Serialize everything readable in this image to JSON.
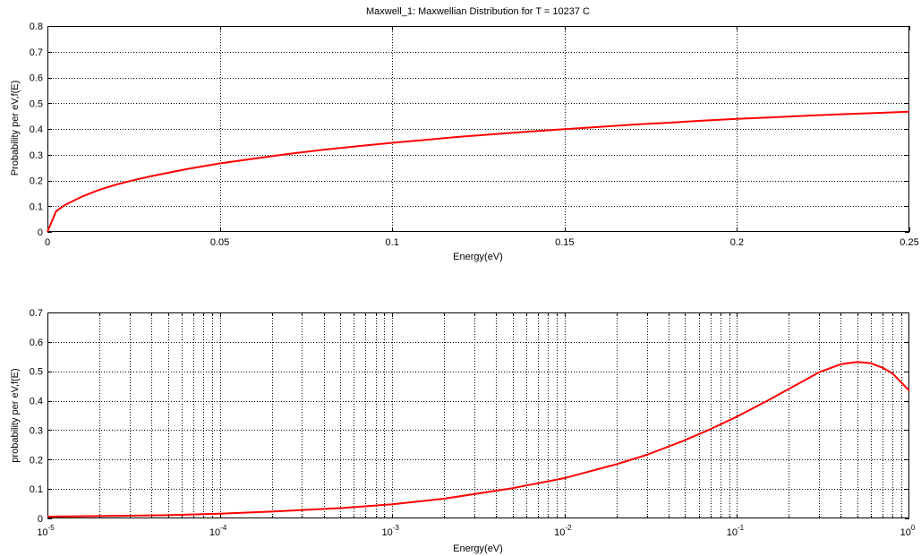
{
  "figure": {
    "title": "Maxwell_1: Maxwellian Distribution for T = 10237 C"
  },
  "colors": {
    "background": "#ffffff",
    "axes_frame": "#000000",
    "grid": "#000000",
    "curve": "#ff0000"
  },
  "chart_data": [
    {
      "type": "line",
      "title": "Maxwell_1: Maxwellian Distribution for T = 10237 C",
      "xlabel": "Energy(eV)",
      "ylabel": "Probability per eV,f(E)",
      "xscale": "linear",
      "xlim": [
        0,
        0.25
      ],
      "ylim": [
        0,
        0.8
      ],
      "xticks": [
        0,
        0.05,
        0.1,
        0.15,
        0.2,
        0.25
      ],
      "xtick_labels": [
        "0",
        "0.05",
        "0.1",
        "0.15",
        "0.2",
        "0.25"
      ],
      "yticks": [
        0,
        0.1,
        0.2,
        0.3,
        0.4,
        0.5,
        0.6,
        0.7,
        0.8
      ],
      "ytick_labels": [
        "0",
        "0.1",
        "0.2",
        "0.3",
        "0.4",
        "0.5",
        "0.6",
        "0.7",
        "0.8"
      ],
      "grid": true,
      "series": [
        {
          "color": "#ff0000",
          "x": [
            0,
            0.0025,
            0.005,
            0.01,
            0.015,
            0.02,
            0.025,
            0.03,
            0.04,
            0.05,
            0.06,
            0.07,
            0.08,
            0.09,
            0.1,
            0.11,
            0.12,
            0.13,
            0.14,
            0.15,
            0.16,
            0.17,
            0.18,
            0.19,
            0.2,
            0.21,
            0.22,
            0.23,
            0.24,
            0.25
          ],
          "y": [
            0,
            0.08,
            0.104,
            0.137,
            0.163,
            0.184,
            0.201,
            0.216,
            0.243,
            0.266,
            0.285,
            0.303,
            0.319,
            0.333,
            0.346,
            0.358,
            0.37,
            0.38,
            0.39,
            0.399,
            0.408,
            0.417,
            0.424,
            0.432,
            0.439,
            0.445,
            0.451,
            0.457,
            0.462,
            0.467
          ]
        }
      ]
    },
    {
      "type": "line",
      "xlabel": "Energy(eV)",
      "ylabel": "probability per eV,f(E)",
      "xscale": "log",
      "xlim": [
        1e-05,
        1
      ],
      "ylim": [
        0,
        0.7
      ],
      "xticks": [
        1e-05,
        0.0001,
        0.001,
        0.01,
        0.1,
        1
      ],
      "xtick_labels": [
        {
          "base": "10",
          "exp": "-5"
        },
        {
          "base": "10",
          "exp": "-4"
        },
        {
          "base": "10",
          "exp": "-3"
        },
        {
          "base": "10",
          "exp": "-2"
        },
        {
          "base": "10",
          "exp": "-1"
        },
        {
          "base": "10",
          "exp": "0"
        }
      ],
      "yticks": [
        0,
        0.1,
        0.2,
        0.3,
        0.4,
        0.5,
        0.6,
        0.7
      ],
      "ytick_labels": [
        "0",
        "0.1",
        "0.2",
        "0.3",
        "0.4",
        "0.5",
        "0.6",
        "0.7"
      ],
      "grid": true,
      "series": [
        {
          "color": "#ff0000",
          "x": [
            1e-05,
            2e-05,
            5e-05,
            0.0001,
            0.0002,
            0.0005,
            0.001,
            0.002,
            0.005,
            0.01,
            0.02,
            0.03,
            0.05,
            0.07,
            0.1,
            0.15,
            0.2,
            0.3,
            0.4,
            0.5,
            0.6,
            0.7,
            0.8,
            1.0
          ],
          "y": [
            0.006,
            0.008,
            0.011,
            0.016,
            0.023,
            0.035,
            0.048,
            0.067,
            0.103,
            0.137,
            0.184,
            0.216,
            0.266,
            0.303,
            0.346,
            0.4,
            0.44,
            0.497,
            0.524,
            0.532,
            0.527,
            0.512,
            0.492,
            0.434
          ]
        }
      ]
    }
  ]
}
